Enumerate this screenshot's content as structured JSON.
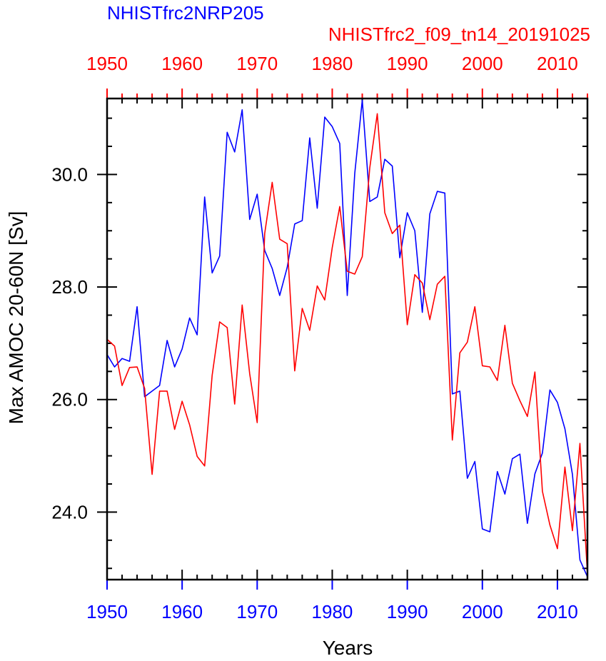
{
  "chart_data": {
    "type": "line",
    "title_series_a": "NHISTfrc2NRP205",
    "title_series_b": "NHISTfrc2_f09_tn14_20191025",
    "xlabel": "Years",
    "ylabel": "Max AMOC 20-60N [Sv]",
    "xlim": [
      1950,
      2014
    ],
    "ylim": [
      22.8,
      31.35
    ],
    "x_ticks": [
      1950,
      1960,
      1970,
      1980,
      1990,
      2000,
      2010
    ],
    "x_tick_labels": [
      "1950",
      "1960",
      "1970",
      "1980",
      "1990",
      "2000",
      "2010"
    ],
    "y_ticks": [
      24,
      26,
      28,
      30
    ],
    "y_tick_labels": [
      "24.0",
      "26.0",
      "28.0",
      "30.0"
    ],
    "colors": {
      "blue": "#0000ff",
      "red": "#ff0000",
      "axis": "#000000"
    },
    "x": [
      1950,
      1951,
      1952,
      1953,
      1954,
      1955,
      1956,
      1957,
      1958,
      1959,
      1960,
      1961,
      1962,
      1963,
      1964,
      1965,
      1966,
      1967,
      1968,
      1969,
      1970,
      1971,
      1972,
      1973,
      1974,
      1975,
      1976,
      1977,
      1978,
      1979,
      1980,
      1981,
      1982,
      1983,
      1984,
      1985,
      1986,
      1987,
      1988,
      1989,
      1990,
      1991,
      1992,
      1993,
      1994,
      1995,
      1996,
      1997,
      1998,
      1999,
      2000,
      2001,
      2002,
      2003,
      2004,
      2005,
      2006,
      2007,
      2008,
      2009,
      2010,
      2011,
      2012,
      2013,
      2014
    ],
    "series": [
      {
        "name": "NHISTfrc2NRP205",
        "color": "#0000ff",
        "values": [
          26.8,
          26.58,
          26.73,
          26.68,
          27.65,
          26.05,
          26.15,
          26.25,
          27.05,
          26.58,
          26.9,
          27.45,
          27.15,
          29.6,
          28.25,
          28.55,
          30.75,
          30.4,
          31.15,
          29.2,
          29.65,
          28.65,
          28.33,
          27.85,
          28.35,
          29.12,
          29.18,
          30.65,
          29.4,
          31.02,
          30.85,
          30.55,
          27.85,
          30.02,
          31.32,
          29.52,
          29.6,
          30.27,
          30.15,
          28.52,
          29.32,
          29.0,
          27.55,
          29.3,
          29.7,
          29.67,
          26.1,
          26.15,
          24.6,
          24.9,
          23.7,
          23.65,
          24.72,
          24.32,
          24.95,
          25.03,
          23.8,
          24.68,
          25.05,
          26.17,
          25.95,
          25.48,
          24.67,
          23.15,
          22.85
        ]
      },
      {
        "name": "NHISTfrc2_f09_tn14_20191025",
        "color": "#ff0000",
        "values": [
          27.07,
          26.95,
          26.25,
          26.57,
          26.58,
          26.2,
          24.67,
          26.15,
          26.15,
          25.47,
          25.97,
          25.55,
          24.99,
          24.82,
          26.43,
          27.38,
          27.28,
          25.92,
          27.68,
          26.46,
          25.59,
          28.95,
          29.86,
          28.85,
          28.77,
          26.51,
          27.62,
          27.23,
          28.02,
          27.77,
          28.7,
          29.43,
          28.28,
          28.23,
          28.54,
          30.12,
          31.08,
          29.32,
          28.95,
          29.1,
          27.33,
          28.22,
          28.07,
          27.42,
          28.05,
          28.19,
          25.28,
          26.83,
          27.02,
          27.65,
          26.6,
          26.58,
          26.34,
          27.32,
          26.29,
          25.98,
          25.7,
          26.49,
          24.37,
          23.77,
          23.35,
          24.8,
          23.67,
          25.22,
          22.9
        ]
      }
    ]
  }
}
